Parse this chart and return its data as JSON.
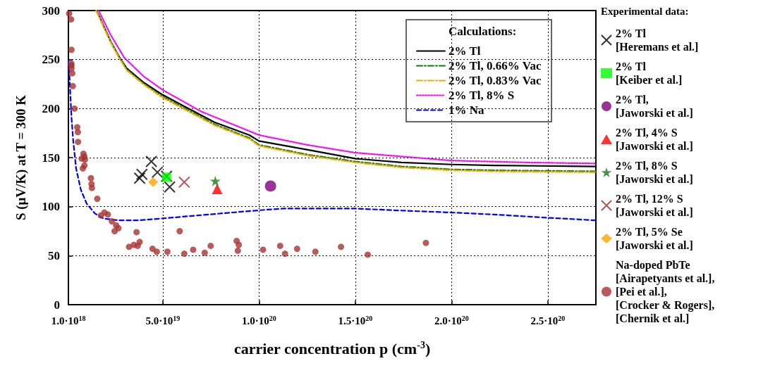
{
  "chart_data": {
    "type": "scatter",
    "xlabel": "carrier concentration p (cm$^{-3}$)",
    "ylabel": "S (μV/K) at T = 300 K",
    "legend_title": "Experimental data:",
    "annotations": [
      "Calculations:"
    ],
    "xlim": [
      1e+18,
      2.75e+20
    ],
    "xticks": [
      {
        "value": 1e+18,
        "label": "1.0·10$^{18}$"
      },
      {
        "value": 5e+19,
        "label": "5.0·10$^{19}$"
      },
      {
        "value": 1e+20,
        "label": "1.0·10$^{20}$"
      },
      {
        "value": 1.5e+20,
        "label": "1.5·10$^{20}$"
      },
      {
        "value": 2e+20,
        "label": "2.0·10$^{20}$"
      },
      {
        "value": 2.5e+20,
        "label": "2.5·10$^{20}$"
      }
    ],
    "ylim": [
      0,
      300
    ],
    "yticks": [
      0,
      50,
      100,
      150,
      200,
      250,
      300
    ],
    "grid": true,
    "legend": "right",
    "series": [
      {
        "name": "2% Tl",
        "type": "line",
        "color": "#000000",
        "line_style": "solid",
        "marker": "none",
        "x": [
          1.54e+19,
          1.66e+19,
          2.28e+19,
          2.76e+19,
          3.13e+19,
          3.98e+19,
          5e+19,
          7.69e+19,
          9.5e+19,
          1e+20,
          1.253e+20,
          1.5e+20,
          1.74e+20,
          2e+20,
          2.22e+20,
          2.75e+20
        ],
        "values": [
          300,
          296,
          269,
          252,
          241,
          227,
          214,
          186,
          173,
          167,
          158,
          149,
          145,
          143,
          142,
          141
        ]
      },
      {
        "name": "2% Tl, 0.66% Vac",
        "type": "line",
        "color": "#008000",
        "line_style": "dashdot",
        "marker": "none",
        "x": [
          1.54e+19,
          1.66e+19,
          2.28e+19,
          2.76e+19,
          3.13e+19,
          3.98e+19,
          5e+19,
          7.69e+19,
          9.5e+19,
          1e+20,
          1.253e+20,
          1.5e+20,
          1.74e+20,
          2e+20,
          2.22e+20,
          2.75e+20
        ],
        "values": [
          300,
          296,
          269,
          252,
          240,
          226,
          212,
          184,
          170,
          163,
          153,
          146,
          141,
          138,
          137,
          136
        ]
      },
      {
        "name": "2% Tl, 0.83% Vac",
        "type": "line",
        "color": "#ffa500",
        "line_style": "dashdot",
        "marker": "none",
        "x": [
          1.54e+19,
          1.66e+19,
          2.28e+19,
          2.76e+19,
          3.13e+19,
          3.98e+19,
          5e+19,
          7.69e+19,
          9.5e+19,
          1e+20,
          1.253e+20,
          1.5e+20,
          1.74e+20,
          2e+20,
          2.22e+20,
          2.75e+20
        ],
        "values": [
          300,
          295,
          268,
          251,
          239,
          225,
          211,
          183,
          169,
          162,
          152,
          145,
          140,
          137,
          136,
          135
        ]
      },
      {
        "name": "2% Tl, 8% S",
        "type": "line",
        "color": "#ff00ff",
        "line_style": "dotted",
        "marker": "none",
        "x": [
          1.67e+19,
          2.3e+19,
          3e+19,
          4e+19,
          5e+19,
          7e+19,
          1e+20,
          1.25e+20,
          1.5e+20,
          2e+20,
          2.4e+20,
          2.75e+20
        ],
        "values": [
          300,
          275,
          252,
          233,
          219,
          197,
          173,
          163,
          155,
          147,
          145,
          144
        ]
      },
      {
        "name": "1% Na",
        "type": "line",
        "color": "#0000ff",
        "line_style": "dashed",
        "marker": "none",
        "x": [
          1e+18,
          1.6e+18,
          2e+18,
          2.6e+18,
          3.5e+18,
          5e+18,
          7.5e+18,
          1.05e+19,
          1.48e+19,
          1.91e+19,
          2.7e+19,
          3.74e+19,
          5e+19,
          6.8e+19,
          8.6e+19,
          1.045e+20,
          1.13e+20,
          1.5e+20,
          1.74e+20,
          2e+20,
          2.22e+20,
          2.47e+20,
          2.75e+20
        ],
        "values": [
          248,
          232,
          215,
          191,
          167,
          139,
          117,
          103,
          93,
          88,
          86,
          86,
          88,
          91,
          94,
          97,
          98,
          98,
          96,
          94,
          92,
          89,
          86
        ]
      },
      {
        "name": "2% Tl\n[Heremans et al.]",
        "color": "#000000",
        "marker": "cross",
        "x": [
          4.41e+19,
          3.92e+19,
          3.8e+19,
          4.72e+19,
          5.2e+19,
          5.36e+19
        ],
        "values": [
          146,
          133,
          129,
          135,
          131,
          120
        ]
      },
      {
        "name": "2% Tl\n[Keiber et al.]",
        "color": "#00ff00",
        "marker": "square",
        "x": [
          5.2e+19
        ],
        "values": [
          130
        ]
      },
      {
        "name": "2% Tl,\n[Jaworski et al.]",
        "color": "#800080",
        "marker": "circle",
        "x": [
          1.06e+20
        ],
        "values": [
          121
        ]
      },
      {
        "name": "2% Tl, 4% S\n[Jaworski et al.]",
        "color": "#ff0000",
        "marker": "triangle",
        "x": [
          7.83e+19
        ],
        "values": [
          118
        ]
      },
      {
        "name": "2% Tl, 8% S\n[Jaworski et al.]",
        "color": "#1a7a1a",
        "marker": "star",
        "x": [
          7.73e+19
        ],
        "values": [
          126
        ]
      },
      {
        "name": "2% Tl, 12% S\n[Jaworski et al.]",
        "color": "#a52a2a",
        "marker": "cross",
        "x": [
          6.12e+19
        ],
        "values": [
          125
        ]
      },
      {
        "name": "2% Tl, 5% Se\n[Jaworski et al.]",
        "color": "#ffa500",
        "marker": "diamond",
        "x": [
          4.5e+19
        ],
        "values": [
          125
        ]
      },
      {
        "name": "Na-doped PbTe\n[Airapetyants et al.],\n[Pei et al.],\n[Crocker & Rogers],\n[Chernik et al.]",
        "color": "#a83232",
        "marker": "circle",
        "x": [
          1.4e+18,
          2.4e+18,
          2.6e+18,
          2.5e+18,
          2.6e+18,
          2.6e+18,
          3e+18,
          3.3e+18,
          4.2e+18,
          5.6e+18,
          5.9e+18,
          6e+18,
          8.8e+18,
          9.3e+18,
          9.6e+18,
          7.9e+18,
          9.3e+18,
          8.5e+18,
          1.27e+19,
          1.3e+19,
          1.32e+19,
          1.6e+19,
          1.97e+19,
          1.79e+19,
          2.15e+19,
          2.36e+19,
          2.58e+19,
          2.7e+19,
          2.5e+19,
          3.64e+19,
          3.25e+19,
          3.5e+19,
          3.8e+19,
          3.7e+19,
          4.47e+19,
          4.69e+19,
          5.24e+19,
          5.88e+19,
          6.12e+19,
          6.58e+19,
          7.18e+19,
          7.49e+19,
          8.84e+19,
          8.95e+19,
          8.9e+19,
          1.021e+20,
          1.11e+20,
          1.135e+20,
          1.198e+20,
          1.293e+20,
          1.426e+20,
          1.565e+20,
          1.867e+20
        ],
        "values": [
          297,
          291,
          260,
          246,
          244,
          241,
          236,
          223,
          200,
          181,
          176,
          166,
          154,
          151,
          148,
          149,
          142,
          139,
          129,
          123,
          119,
          108,
          94,
          91,
          92,
          85,
          81,
          78,
          75,
          74,
          59,
          61,
          64,
          60,
          57,
          54,
          54,
          75,
          52,
          56,
          53,
          60,
          65,
          61,
          55,
          56,
          60,
          52,
          57,
          54,
          59,
          51,
          63
        ]
      }
    ]
  }
}
